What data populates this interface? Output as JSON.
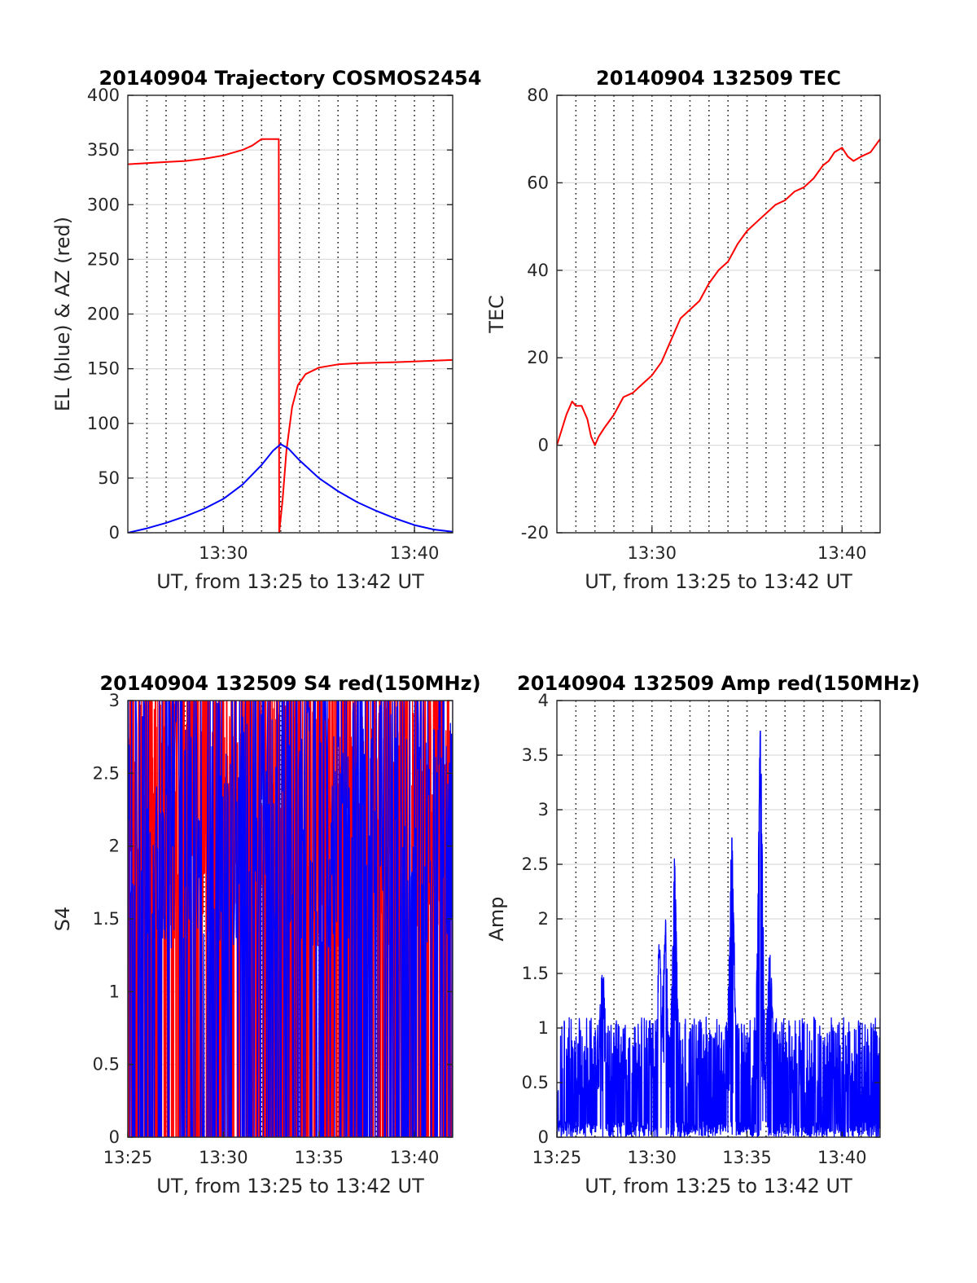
{
  "figure": {
    "background": "#ffffff"
  },
  "chart_data": [
    {
      "type": "line",
      "title": "20140904 Trajectory COSMOS2454",
      "xlabel": "UT, from 13:25 to 13:42 UT",
      "ylabel": "EL (blue) & AZ (red)",
      "xlim": [
        0,
        17
      ],
      "ylim": [
        0,
        400
      ],
      "xtick_values": [
        5,
        15
      ],
      "xtick_labels": [
        "13:30",
        "13:40"
      ],
      "ytick_values": [
        0,
        50,
        100,
        150,
        200,
        250,
        300,
        350,
        400
      ],
      "ytick_labels": [
        "0",
        "50",
        "100",
        "150",
        "200",
        "250",
        "300",
        "350",
        "400"
      ],
      "vgrid_minutes": [
        1,
        2,
        3,
        4,
        5,
        6,
        7,
        8,
        9,
        10,
        11,
        12,
        13,
        14,
        15,
        16
      ],
      "grid": true,
      "series": [
        {
          "color": "#ff0000",
          "kind": "line",
          "x": [
            0,
            1,
            2,
            3,
            4,
            5,
            6,
            6.5,
            7,
            7.9,
            7.92,
            8.1,
            8.3,
            8.6,
            8.9,
            9.3,
            10,
            11,
            12,
            14,
            17
          ],
          "y": [
            337,
            338,
            339,
            340,
            342,
            345,
            350,
            354,
            360,
            360,
            0,
            30,
            75,
            115,
            135,
            145,
            151,
            154,
            155,
            156,
            158
          ]
        },
        {
          "color": "#0000ff",
          "kind": "line",
          "x": [
            0,
            1,
            2,
            3,
            4,
            5,
            6,
            7,
            7.6,
            8.0,
            8.4,
            9,
            10,
            11,
            12,
            13,
            14,
            15,
            16,
            17
          ],
          "y": [
            0,
            4,
            9,
            15,
            22,
            31,
            44,
            62,
            75,
            81,
            77,
            66,
            50,
            38,
            28,
            20,
            13,
            7,
            3,
            1
          ]
        }
      ]
    },
    {
      "type": "line",
      "title": "20140904 132509 TEC",
      "xlabel": "UT, from 13:25 to 13:42 UT",
      "ylabel": "TEC",
      "xlim": [
        0,
        17
      ],
      "ylim": [
        -20,
        80
      ],
      "xtick_values": [
        5,
        15
      ],
      "xtick_labels": [
        "13:30",
        "13:40"
      ],
      "ytick_values": [
        -20,
        0,
        20,
        40,
        60,
        80
      ],
      "ytick_labels": [
        "-20",
        "0",
        "20",
        "40",
        "60",
        "80"
      ],
      "vgrid_minutes": [
        1,
        2,
        3,
        4,
        5,
        6,
        7,
        8,
        9,
        10,
        11,
        12,
        13,
        14,
        15,
        16
      ],
      "grid": true,
      "series": [
        {
          "color": "#ff0000",
          "kind": "line",
          "x": [
            0,
            0.5,
            0.8,
            1.0,
            1.3,
            1.6,
            1.8,
            2.0,
            2.2,
            2.5,
            3,
            3.5,
            4,
            4.5,
            5,
            5.5,
            6,
            6.5,
            7,
            7.5,
            8,
            8.5,
            9,
            9.5,
            10,
            10.5,
            11,
            11.5,
            12,
            12.5,
            13,
            13.5,
            14,
            14.3,
            14.6,
            15,
            15.3,
            15.6,
            16,
            16.5,
            17
          ],
          "y": [
            0,
            7,
            10,
            9,
            9,
            6,
            2,
            0,
            2,
            4,
            7,
            11,
            12,
            14,
            16,
            19,
            24,
            29,
            31,
            33,
            37,
            40,
            42,
            46,
            49,
            51,
            53,
            55,
            56,
            58,
            59,
            61,
            64,
            65,
            67,
            68,
            66,
            65,
            66,
            67,
            70
          ]
        }
      ]
    },
    {
      "type": "line",
      "title": "20140904 132509 S4 red(150MHz)",
      "xlabel": "UT, from 13:25 to 13:42 UT",
      "ylabel": "S4",
      "xlim": [
        0,
        17
      ],
      "ylim": [
        0,
        3
      ],
      "xtick_values": [
        0,
        5,
        10,
        15
      ],
      "xtick_labels": [
        "13:25",
        "13:30",
        "13:35",
        "13:40"
      ],
      "ytick_values": [
        0,
        0.5,
        1,
        1.5,
        2,
        2.5,
        3
      ],
      "ytick_labels": [
        "0",
        "0.5",
        "1",
        "1.5",
        "2",
        "2.5",
        "3"
      ],
      "vgrid_minutes": [
        1,
        2,
        3,
        4,
        5,
        6,
        7,
        8,
        9,
        10,
        11,
        12,
        13,
        14,
        15,
        16
      ],
      "grid": true,
      "series": [
        {
          "color": "#ff0000",
          "kind": "noise",
          "points": 1400,
          "min": 0,
          "max": 3,
          "seed": 11
        },
        {
          "color": "#0000ff",
          "kind": "noise",
          "points": 600,
          "min": 0,
          "max": 3,
          "seed": 23
        }
      ]
    },
    {
      "type": "line",
      "title": "20140904 132509 Amp red(150MHz)",
      "xlabel": "UT, from 13:25 to 13:42 UT",
      "ylabel": "Amp",
      "xlim": [
        0,
        17
      ],
      "ylim": [
        0,
        4
      ],
      "xtick_values": [
        0,
        5,
        10,
        15
      ],
      "xtick_labels": [
        "13:25",
        "13:30",
        "13:35",
        "13:40"
      ],
      "ytick_values": [
        0,
        0.5,
        1,
        1.5,
        2,
        2.5,
        3,
        3.5,
        4
      ],
      "ytick_labels": [
        "0",
        "0.5",
        "1",
        "1.5",
        "2",
        "2.5",
        "3",
        "3.5",
        "4"
      ],
      "vgrid_minutes": [
        1,
        2,
        3,
        4,
        5,
        6,
        7,
        8,
        9,
        10,
        11,
        12,
        13,
        14,
        15,
        16
      ],
      "grid": true,
      "series": [
        {
          "color": "#0000ff",
          "kind": "noise",
          "points": 1500,
          "min": 0,
          "max": 1.1,
          "seed": 37,
          "peaks": [
            [
              2.4,
              1.45
            ],
            [
              5.4,
              1.7
            ],
            [
              5.7,
              1.85
            ],
            [
              6.2,
              2.48
            ],
            [
              9.2,
              2.74
            ],
            [
              10.7,
              3.72
            ],
            [
              11.2,
              1.55
            ]
          ]
        }
      ]
    }
  ]
}
